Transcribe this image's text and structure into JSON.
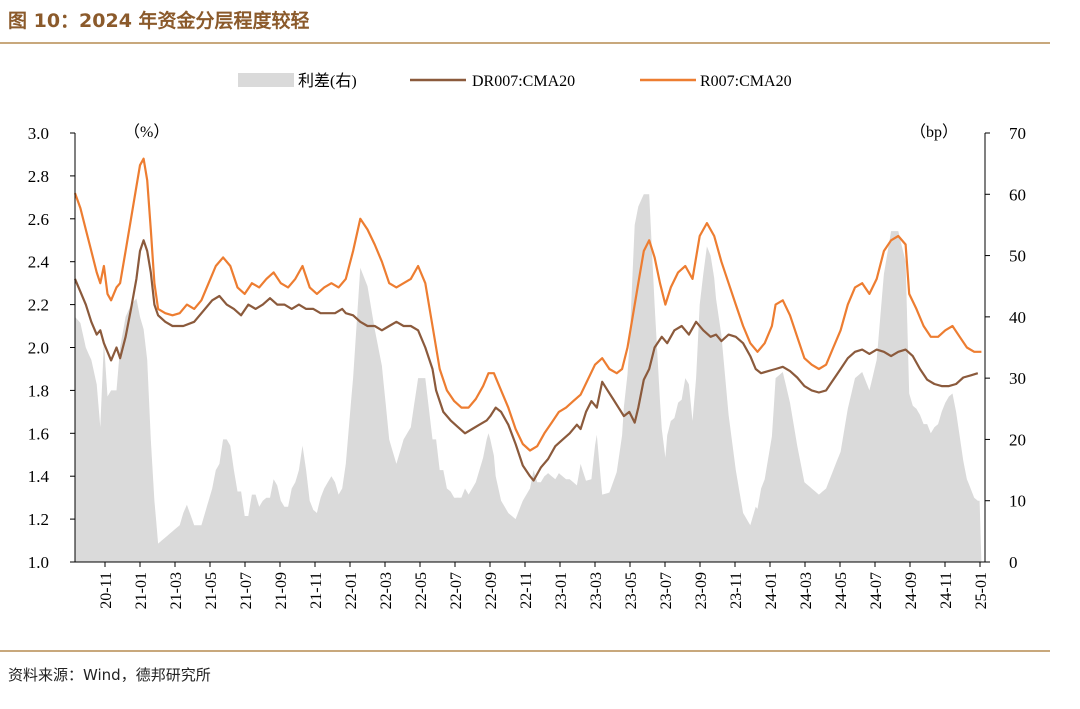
{
  "title": "图 10：2024 年资金分层程度较轻",
  "source": "资料来源：Wind，德邦研究所",
  "chart_data": {
    "type": "line+area",
    "legend": [
      "利差(右)",
      "DR007:CMA20",
      "R007:CMA20"
    ],
    "left_unit": "（%）",
    "right_unit": "（bp）",
    "left_ylim": [
      1.0,
      3.0
    ],
    "right_ylim": [
      0,
      70
    ],
    "left_ticks": [
      "1.0",
      "1.2",
      "1.4",
      "1.6",
      "1.8",
      "2.0",
      "2.2",
      "2.4",
      "2.6",
      "2.8",
      "3.0"
    ],
    "right_ticks": [
      "0",
      "10",
      "20",
      "30",
      "40",
      "50",
      "60",
      "70"
    ],
    "x_ticks": [
      "20-11",
      "21-01",
      "21-03",
      "21-05",
      "21-07",
      "21-09",
      "21-11",
      "22-01",
      "22-03",
      "22-05",
      "22-07",
      "22-09",
      "22-11",
      "23-01",
      "23-03",
      "23-05",
      "23-07",
      "23-09",
      "23-11",
      "24-01",
      "24-03",
      "24-05",
      "24-07",
      "24-09",
      "24-11",
      "25-01"
    ],
    "x_range": [
      0,
      50.4
    ],
    "colors": {
      "spread": "#DADADA",
      "dr007": "#8B5A3C",
      "r007": "#ED7D31"
    },
    "series": [
      {
        "name": "DR007:CMA20",
        "points": [
          [
            0,
            2.32
          ],
          [
            0.3,
            2.26
          ],
          [
            0.6,
            2.2
          ],
          [
            0.9,
            2.12
          ],
          [
            1.2,
            2.06
          ],
          [
            1.4,
            2.08
          ],
          [
            1.6,
            2.02
          ],
          [
            1.8,
            1.98
          ],
          [
            2.0,
            1.94
          ],
          [
            2.3,
            2.0
          ],
          [
            2.5,
            1.95
          ],
          [
            2.8,
            2.05
          ],
          [
            3.1,
            2.18
          ],
          [
            3.4,
            2.32
          ],
          [
            3.6,
            2.45
          ],
          [
            3.8,
            2.5
          ],
          [
            4.0,
            2.45
          ],
          [
            4.2,
            2.35
          ],
          [
            4.4,
            2.2
          ],
          [
            4.6,
            2.15
          ],
          [
            5.0,
            2.12
          ],
          [
            5.4,
            2.1
          ],
          [
            6.0,
            2.1
          ],
          [
            6.6,
            2.12
          ],
          [
            7.2,
            2.18
          ],
          [
            7.6,
            2.22
          ],
          [
            8.0,
            2.24
          ],
          [
            8.4,
            2.2
          ],
          [
            8.8,
            2.18
          ],
          [
            9.2,
            2.15
          ],
          [
            9.6,
            2.2
          ],
          [
            10.0,
            2.18
          ],
          [
            10.4,
            2.2
          ],
          [
            10.8,
            2.23
          ],
          [
            11.2,
            2.2
          ],
          [
            11.6,
            2.2
          ],
          [
            12.0,
            2.18
          ],
          [
            12.4,
            2.2
          ],
          [
            12.8,
            2.18
          ],
          [
            13.2,
            2.18
          ],
          [
            13.6,
            2.16
          ],
          [
            14.0,
            2.16
          ],
          [
            14.4,
            2.16
          ],
          [
            14.8,
            2.18
          ],
          [
            15.0,
            2.16
          ],
          [
            15.4,
            2.15
          ],
          [
            15.8,
            2.12
          ],
          [
            16.2,
            2.1
          ],
          [
            16.6,
            2.1
          ],
          [
            17.0,
            2.08
          ],
          [
            17.4,
            2.1
          ],
          [
            17.8,
            2.12
          ],
          [
            18.2,
            2.1
          ],
          [
            18.6,
            2.1
          ],
          [
            19.0,
            2.08
          ],
          [
            19.4,
            2.0
          ],
          [
            19.8,
            1.9
          ],
          [
            20.0,
            1.8
          ],
          [
            20.4,
            1.7
          ],
          [
            20.8,
            1.66
          ],
          [
            21.2,
            1.63
          ],
          [
            21.6,
            1.6
          ],
          [
            22.0,
            1.62
          ],
          [
            22.4,
            1.64
          ],
          [
            22.8,
            1.66
          ],
          [
            23.0,
            1.68
          ],
          [
            23.3,
            1.72
          ],
          [
            23.6,
            1.7
          ],
          [
            24.0,
            1.64
          ],
          [
            24.4,
            1.55
          ],
          [
            24.8,
            1.45
          ],
          [
            25.2,
            1.4
          ],
          [
            25.4,
            1.38
          ],
          [
            25.8,
            1.44
          ],
          [
            26.2,
            1.48
          ],
          [
            26.6,
            1.54
          ],
          [
            27.0,
            1.57
          ],
          [
            27.4,
            1.6
          ],
          [
            27.8,
            1.64
          ],
          [
            28.0,
            1.62
          ],
          [
            28.3,
            1.7
          ],
          [
            28.6,
            1.75
          ],
          [
            28.9,
            1.72
          ],
          [
            29.2,
            1.84
          ],
          [
            29.5,
            1.8
          ],
          [
            29.8,
            1.76
          ],
          [
            30.1,
            1.72
          ],
          [
            30.4,
            1.68
          ],
          [
            30.7,
            1.7
          ],
          [
            31.0,
            1.65
          ],
          [
            31.2,
            1.72
          ],
          [
            31.5,
            1.85
          ],
          [
            31.8,
            1.9
          ],
          [
            32.1,
            2.0
          ],
          [
            32.5,
            2.05
          ],
          [
            32.8,
            2.02
          ],
          [
            33.2,
            2.08
          ],
          [
            33.6,
            2.1
          ],
          [
            34.0,
            2.06
          ],
          [
            34.4,
            2.12
          ],
          [
            34.8,
            2.08
          ],
          [
            35.2,
            2.05
          ],
          [
            35.5,
            2.06
          ],
          [
            35.8,
            2.03
          ],
          [
            36.2,
            2.06
          ],
          [
            36.6,
            2.05
          ],
          [
            37.0,
            2.02
          ],
          [
            37.4,
            1.96
          ],
          [
            37.7,
            1.9
          ],
          [
            38.0,
            1.88
          ],
          [
            38.4,
            1.89
          ],
          [
            38.8,
            1.9
          ],
          [
            39.2,
            1.91
          ],
          [
            39.6,
            1.89
          ],
          [
            40.0,
            1.86
          ],
          [
            40.4,
            1.82
          ],
          [
            40.8,
            1.8
          ],
          [
            41.2,
            1.79
          ],
          [
            41.6,
            1.8
          ],
          [
            42.0,
            1.85
          ],
          [
            42.4,
            1.9
          ],
          [
            42.8,
            1.95
          ],
          [
            43.2,
            1.98
          ],
          [
            43.6,
            1.99
          ],
          [
            44.0,
            1.97
          ],
          [
            44.4,
            1.99
          ],
          [
            44.8,
            1.98
          ],
          [
            45.2,
            1.96
          ],
          [
            45.6,
            1.98
          ],
          [
            46.0,
            1.99
          ],
          [
            46.4,
            1.96
          ],
          [
            46.8,
            1.9
          ],
          [
            47.2,
            1.85
          ],
          [
            47.6,
            1.83
          ],
          [
            48.0,
            1.82
          ],
          [
            48.4,
            1.82
          ],
          [
            48.8,
            1.83
          ],
          [
            49.2,
            1.86
          ],
          [
            49.6,
            1.87
          ],
          [
            50.0,
            1.88
          ]
        ]
      },
      {
        "name": "R007:CMA20",
        "points": [
          [
            0,
            2.72
          ],
          [
            0.3,
            2.65
          ],
          [
            0.6,
            2.55
          ],
          [
            0.9,
            2.45
          ],
          [
            1.2,
            2.35
          ],
          [
            1.4,
            2.3
          ],
          [
            1.6,
            2.38
          ],
          [
            1.8,
            2.25
          ],
          [
            2.0,
            2.22
          ],
          [
            2.3,
            2.28
          ],
          [
            2.5,
            2.3
          ],
          [
            2.8,
            2.45
          ],
          [
            3.1,
            2.6
          ],
          [
            3.4,
            2.75
          ],
          [
            3.6,
            2.85
          ],
          [
            3.8,
            2.88
          ],
          [
            4.0,
            2.78
          ],
          [
            4.2,
            2.55
          ],
          [
            4.4,
            2.3
          ],
          [
            4.6,
            2.18
          ],
          [
            5.0,
            2.16
          ],
          [
            5.4,
            2.15
          ],
          [
            5.8,
            2.16
          ],
          [
            6.2,
            2.2
          ],
          [
            6.6,
            2.18
          ],
          [
            7.0,
            2.22
          ],
          [
            7.4,
            2.3
          ],
          [
            7.8,
            2.38
          ],
          [
            8.2,
            2.42
          ],
          [
            8.6,
            2.38
          ],
          [
            9.0,
            2.28
          ],
          [
            9.4,
            2.25
          ],
          [
            9.8,
            2.3
          ],
          [
            10.2,
            2.28
          ],
          [
            10.6,
            2.32
          ],
          [
            11.0,
            2.35
          ],
          [
            11.4,
            2.3
          ],
          [
            11.8,
            2.28
          ],
          [
            12.2,
            2.32
          ],
          [
            12.6,
            2.38
          ],
          [
            13.0,
            2.28
          ],
          [
            13.4,
            2.25
          ],
          [
            13.8,
            2.28
          ],
          [
            14.2,
            2.3
          ],
          [
            14.6,
            2.28
          ],
          [
            15.0,
            2.32
          ],
          [
            15.4,
            2.45
          ],
          [
            15.8,
            2.6
          ],
          [
            16.2,
            2.55
          ],
          [
            16.6,
            2.48
          ],
          [
            17.0,
            2.4
          ],
          [
            17.4,
            2.3
          ],
          [
            17.8,
            2.28
          ],
          [
            18.2,
            2.3
          ],
          [
            18.6,
            2.32
          ],
          [
            19.0,
            2.38
          ],
          [
            19.4,
            2.3
          ],
          [
            19.8,
            2.1
          ],
          [
            20.2,
            1.9
          ],
          [
            20.6,
            1.8
          ],
          [
            21.0,
            1.75
          ],
          [
            21.4,
            1.72
          ],
          [
            21.8,
            1.72
          ],
          [
            22.2,
            1.76
          ],
          [
            22.6,
            1.82
          ],
          [
            22.9,
            1.88
          ],
          [
            23.2,
            1.88
          ],
          [
            23.6,
            1.8
          ],
          [
            24.0,
            1.72
          ],
          [
            24.4,
            1.62
          ],
          [
            24.8,
            1.55
          ],
          [
            25.2,
            1.52
          ],
          [
            25.6,
            1.54
          ],
          [
            26.0,
            1.6
          ],
          [
            26.4,
            1.65
          ],
          [
            26.8,
            1.7
          ],
          [
            27.2,
            1.72
          ],
          [
            27.6,
            1.75
          ],
          [
            28.0,
            1.78
          ],
          [
            28.4,
            1.85
          ],
          [
            28.8,
            1.92
          ],
          [
            29.2,
            1.95
          ],
          [
            29.6,
            1.9
          ],
          [
            30.0,
            1.88
          ],
          [
            30.3,
            1.9
          ],
          [
            30.6,
            2.0
          ],
          [
            30.9,
            2.15
          ],
          [
            31.2,
            2.3
          ],
          [
            31.5,
            2.45
          ],
          [
            31.8,
            2.5
          ],
          [
            32.1,
            2.42
          ],
          [
            32.4,
            2.3
          ],
          [
            32.7,
            2.2
          ],
          [
            33.0,
            2.28
          ],
          [
            33.4,
            2.35
          ],
          [
            33.8,
            2.38
          ],
          [
            34.2,
            2.32
          ],
          [
            34.6,
            2.52
          ],
          [
            35.0,
            2.58
          ],
          [
            35.4,
            2.52
          ],
          [
            35.8,
            2.4
          ],
          [
            36.2,
            2.3
          ],
          [
            36.6,
            2.2
          ],
          [
            37.0,
            2.1
          ],
          [
            37.4,
            2.02
          ],
          [
            37.8,
            1.98
          ],
          [
            38.2,
            2.02
          ],
          [
            38.6,
            2.1
          ],
          [
            38.8,
            2.2
          ],
          [
            39.2,
            2.22
          ],
          [
            39.6,
            2.15
          ],
          [
            40.0,
            2.05
          ],
          [
            40.4,
            1.95
          ],
          [
            40.8,
            1.92
          ],
          [
            41.2,
            1.9
          ],
          [
            41.6,
            1.92
          ],
          [
            42.0,
            2.0
          ],
          [
            42.4,
            2.08
          ],
          [
            42.8,
            2.2
          ],
          [
            43.2,
            2.28
          ],
          [
            43.6,
            2.3
          ],
          [
            44.0,
            2.25
          ],
          [
            44.4,
            2.32
          ],
          [
            44.8,
            2.45
          ],
          [
            45.2,
            2.5
          ],
          [
            45.6,
            2.52
          ],
          [
            46.0,
            2.48
          ],
          [
            46.2,
            2.25
          ],
          [
            46.6,
            2.18
          ],
          [
            47.0,
            2.1
          ],
          [
            47.4,
            2.05
          ],
          [
            47.8,
            2.05
          ],
          [
            48.2,
            2.08
          ],
          [
            48.6,
            2.1
          ],
          [
            49.0,
            2.05
          ],
          [
            49.4,
            2.0
          ],
          [
            49.8,
            1.98
          ],
          [
            50.2,
            1.98
          ]
        ]
      }
    ]
  }
}
